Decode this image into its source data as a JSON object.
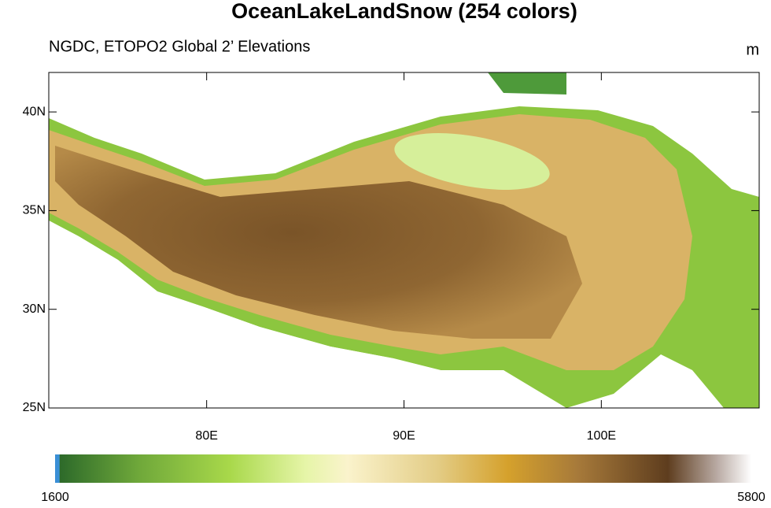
{
  "map": {
    "title": "OceanLakeLandSnow (254 colors)",
    "subtitle": "NGDC, ETOPO2 Global 2’ Elevations",
    "units": "m",
    "lon_range": [
      72,
      108
    ],
    "lat_range": [
      25,
      42
    ],
    "lat_ticks": [
      {
        "value": 25,
        "label": "25N"
      },
      {
        "value": 30,
        "label": "30N"
      },
      {
        "value": 35,
        "label": "35N"
      },
      {
        "value": 40,
        "label": "40N"
      }
    ],
    "lon_ticks": [
      {
        "value": 80,
        "label": "80E"
      },
      {
        "value": 90,
        "label": "90E"
      },
      {
        "value": 100,
        "label": "100E"
      }
    ],
    "colorbar": {
      "labels": [
        1600,
        5800
      ]
    }
  }
}
